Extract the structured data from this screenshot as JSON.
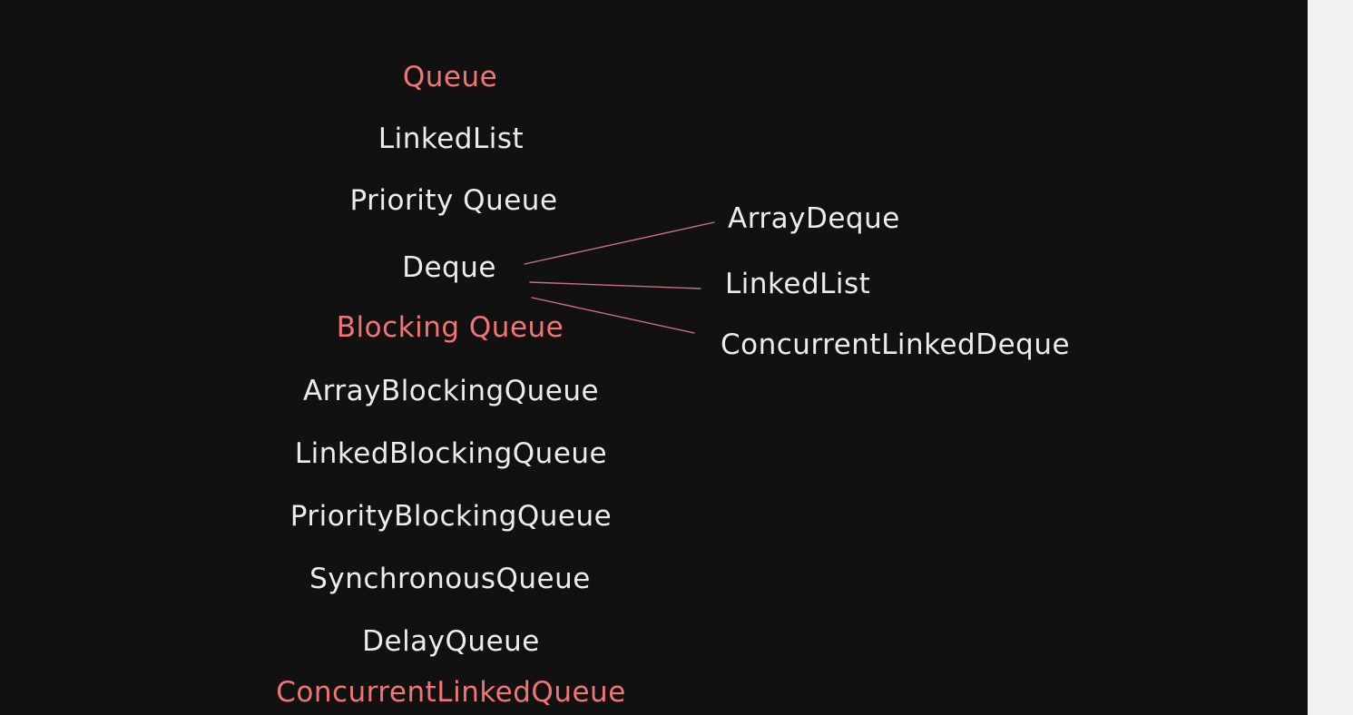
{
  "colors": {
    "background": "#111111",
    "text": "#ececec",
    "accent": "#f27474",
    "connector": "#d0707a",
    "side_strip": "#f2f2f2"
  },
  "left_column": {
    "queue": "Queue",
    "linked_list": "LinkedList",
    "priority_queue": "Priority Queue",
    "deque": "Deque",
    "blocking_queue": "Blocking Queue",
    "array_blocking_queue": "ArrayBlockingQueue",
    "linked_blocking_queue": "LinkedBlockingQueue",
    "priority_blocking_queue": "PriorityBlockingQueue",
    "synchronous_queue": "SynchronousQueue",
    "delay_queue": "DelayQueue",
    "concurrent_linked_queue": "ConcurrentLinkedQueue"
  },
  "deque_implementations": {
    "array_deque": "ArrayDeque",
    "linked_list": "LinkedList",
    "concurrent_linked_deque": "ConcurrentLinkedDeque"
  }
}
